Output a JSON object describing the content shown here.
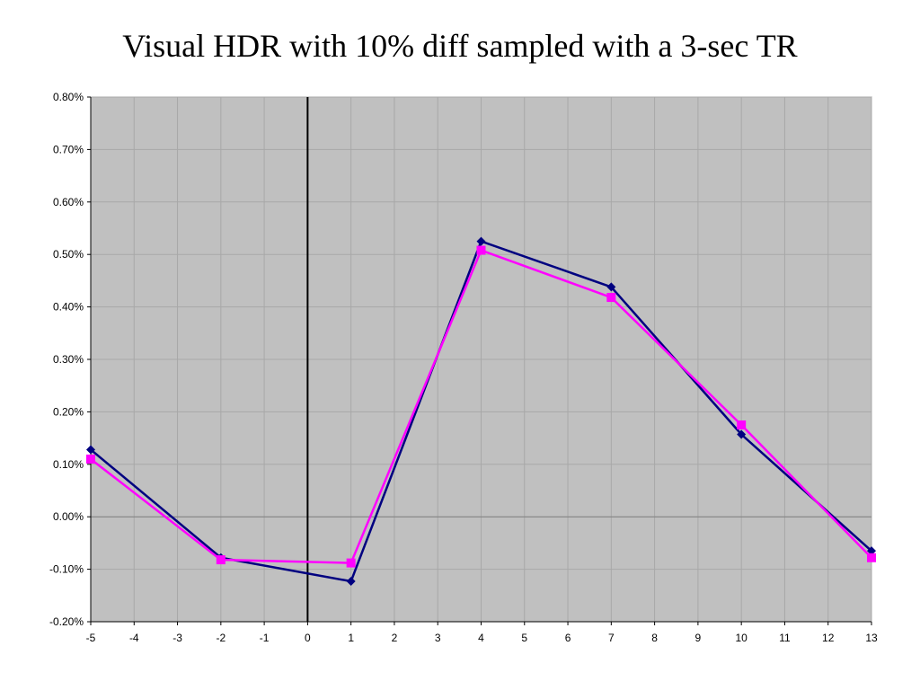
{
  "chart_data": {
    "type": "line",
    "title": "Visual HDR with 10% diff sampled with a 3-sec TR",
    "xlabel": "",
    "ylabel": "",
    "xlim": [
      -5,
      13
    ],
    "ylim": [
      -0.002,
      0.008
    ],
    "x_ticks": [
      "-5",
      "-4",
      "-3",
      "-2",
      "-1",
      "0",
      "1",
      "2",
      "3",
      "4",
      "5",
      "6",
      "7",
      "8",
      "9",
      "10",
      "11",
      "12",
      "13"
    ],
    "y_ticks": [
      "0.80%",
      "0.70%",
      "0.60%",
      "0.50%",
      "0.40%",
      "0.30%",
      "0.20%",
      "0.10%",
      "0.00%",
      "-0.10%",
      "-0.20%"
    ],
    "grid": true,
    "vertical_marker_x": 0,
    "plot_background": "#c0c0c0",
    "series": [
      {
        "marker": "diamond",
        "color": "#000080",
        "x": [
          -5,
          -2,
          1,
          4,
          7,
          10,
          13
        ],
        "y": [
          0.00128,
          -0.00078,
          -0.00123,
          0.00525,
          0.00438,
          0.00157,
          -0.00065
        ]
      },
      {
        "marker": "square",
        "color": "#ff00ff",
        "x": [
          -5,
          -2,
          1,
          4,
          7,
          10,
          13
        ],
        "y": [
          0.0011,
          -0.00082,
          -0.00088,
          0.00508,
          0.00418,
          0.00175,
          -0.00078
        ]
      }
    ]
  }
}
